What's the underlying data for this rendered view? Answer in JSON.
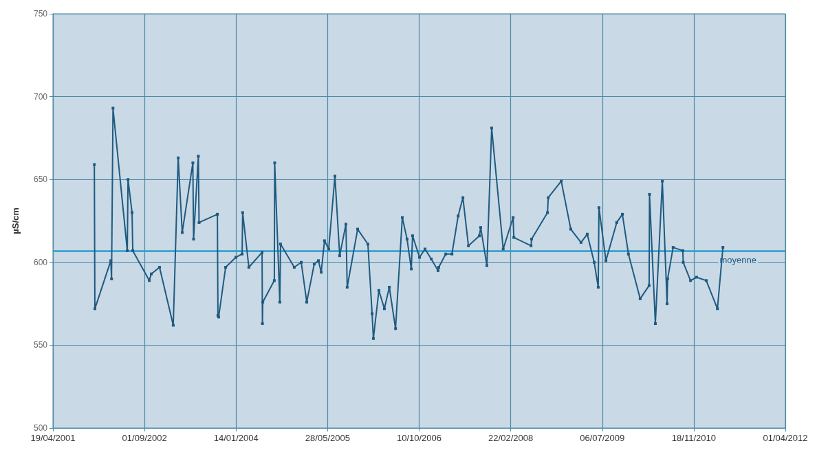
{
  "chart_data": {
    "type": "line",
    "ylabel": "µS/cm",
    "x": [
      "2001-12-01",
      "2001-12-04",
      "2002-03-01",
      "2002-03-05",
      "2002-03-13",
      "2002-05-30",
      "2002-06-03",
      "2002-06-25",
      "2002-06-29",
      "2002-09-27",
      "2002-10-08",
      "2002-11-22",
      "2003-02-05",
      "2003-03-04",
      "2003-03-26",
      "2003-05-23",
      "2003-05-27",
      "2003-06-22",
      "2003-06-26",
      "2003-10-04",
      "2003-10-07",
      "2003-10-11",
      "2003-11-18",
      "2004-01-13",
      "2004-02-16",
      "2004-02-19",
      "2004-03-24",
      "2004-06-04",
      "2004-06-06",
      "2004-06-08",
      "2004-08-10",
      "2004-08-12",
      "2004-09-09",
      "2004-09-13",
      "2004-11-27",
      "2005-01-04",
      "2005-02-03",
      "2005-03-16",
      "2005-04-08",
      "2005-04-23",
      "2005-05-11",
      "2005-06-03",
      "2005-07-07",
      "2005-08-02",
      "2005-09-05",
      "2005-09-12",
      "2005-11-08",
      "2006-01-03",
      "2006-01-26",
      "2006-02-02",
      "2006-03-04",
      "2006-04-03",
      "2006-04-30",
      "2006-06-03",
      "2006-07-10",
      "2006-08-05",
      "2006-08-28",
      "2006-09-04",
      "2006-10-12",
      "2006-11-11",
      "2006-12-15",
      "2007-01-21",
      "2007-01-25",
      "2007-03-04",
      "2007-04-07",
      "2007-05-11",
      "2007-06-06",
      "2007-07-06",
      "2007-09-04",
      "2007-09-11",
      "2007-10-15",
      "2007-11-10",
      "2008-01-12",
      "2008-03-06",
      "2008-03-10",
      "2008-06-12",
      "2008-06-15",
      "2008-09-10",
      "2008-09-14",
      "2008-11-24",
      "2009-01-15",
      "2009-03-12",
      "2009-04-15",
      "2009-05-23",
      "2009-06-14",
      "2009-06-18",
      "2009-07-26",
      "2009-09-23",
      "2009-10-24",
      "2009-11-26",
      "2010-01-29",
      "2010-03-19",
      "2010-03-21",
      "2010-04-22",
      "2010-05-30",
      "2010-06-25",
      "2010-06-28",
      "2010-07-28",
      "2010-09-19",
      "2010-09-21",
      "2010-10-31",
      "2010-12-03",
      "2011-01-25",
      "2011-03-27",
      "2011-04-26"
    ],
    "series": [
      {
        "color": "#1f5a80",
        "values": [
          659,
          572,
          601,
          590,
          693,
          607,
          650,
          630,
          607,
          589,
          593,
          597,
          562,
          663,
          618,
          660,
          614,
          664,
          624,
          629,
          568,
          567,
          597,
          603,
          605,
          630,
          597,
          606,
          563,
          576,
          589,
          660,
          576,
          611,
          597,
          600,
          576,
          599,
          601,
          594,
          613,
          608,
          652,
          604,
          623,
          585,
          620,
          611,
          569,
          554,
          583,
          572,
          585,
          560,
          627,
          614,
          596,
          616,
          603,
          608,
          602,
          595,
          597,
          605,
          605,
          628,
          639,
          610,
          616,
          621,
          598,
          681,
          608,
          627,
          615,
          610,
          614,
          630,
          639,
          649,
          620,
          612,
          617,
          600,
          585,
          633,
          601,
          624,
          629,
          605,
          578,
          586,
          641,
          563,
          649,
          575,
          590,
          609,
          607,
          600,
          589,
          591,
          589,
          572,
          609
        ]
      }
    ],
    "xlim": [
      "2001-04-19",
      "2012-04-01"
    ],
    "xticks": [
      {
        "value": "2001-04-19",
        "label": "19/04/2001"
      },
      {
        "value": "2002-09-01",
        "label": "01/09/2002"
      },
      {
        "value": "2004-01-14",
        "label": "14/01/2004"
      },
      {
        "value": "2005-05-28",
        "label": "28/05/2005"
      },
      {
        "value": "2006-10-10",
        "label": "10/10/2006"
      },
      {
        "value": "2008-02-22",
        "label": "22/02/2008"
      },
      {
        "value": "2009-07-06",
        "label": "06/07/2009"
      },
      {
        "value": "2010-11-18",
        "label": "18/11/2010"
      },
      {
        "value": "2012-04-01",
        "label": "01/04/2012"
      }
    ],
    "ylim": [
      500,
      750
    ],
    "yticks": [
      500,
      550,
      600,
      650,
      700,
      750
    ],
    "ref_lines": [
      {
        "axis": "y",
        "value": 607,
        "label": "moyenne",
        "color": "#2a9ccc",
        "line_style": "solid"
      }
    ],
    "grid": true,
    "marker": "square",
    "line_style": "solid"
  }
}
